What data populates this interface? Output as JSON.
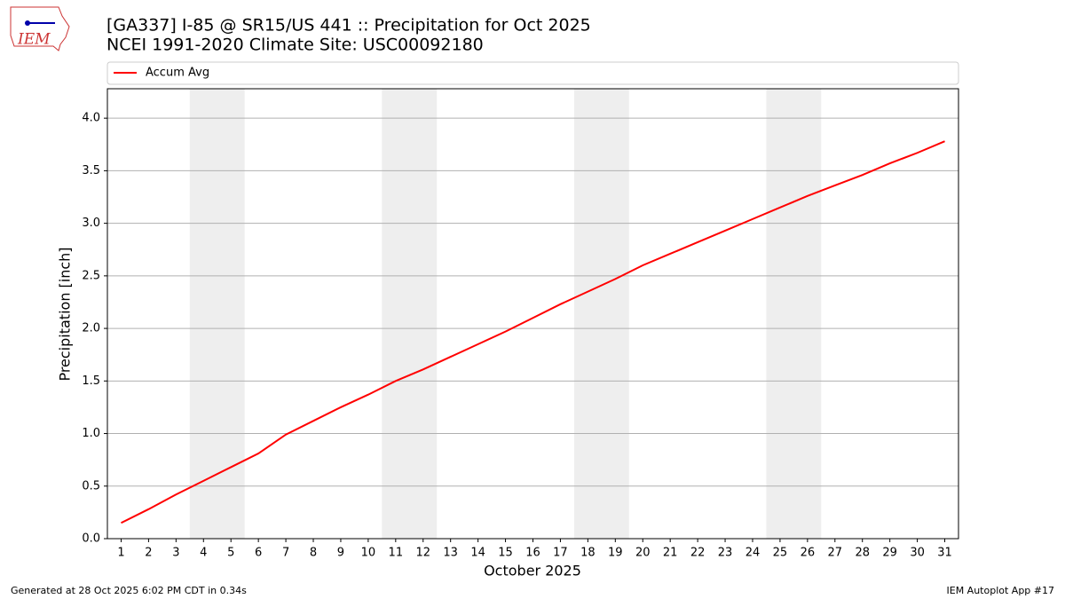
{
  "chart_data": {
    "type": "line",
    "title": "[GA337] I-85 @ SR15/US 441 :: Precipitation for Oct 2025",
    "subtitle": "NCEI 1991-2020 Climate Site: USC00092180",
    "xlabel": "October 2025",
    "ylabel": "Precipitation [inch]",
    "x": [
      1,
      2,
      3,
      4,
      5,
      6,
      7,
      8,
      9,
      10,
      11,
      12,
      13,
      14,
      15,
      16,
      17,
      18,
      19,
      20,
      21,
      22,
      23,
      24,
      25,
      26,
      27,
      28,
      29,
      30,
      31
    ],
    "series": [
      {
        "name": "Accum Avg",
        "color": "#ff0000",
        "values": [
          0.15,
          0.28,
          0.42,
          0.55,
          0.68,
          0.81,
          0.99,
          1.12,
          1.25,
          1.37,
          1.5,
          1.61,
          1.73,
          1.85,
          1.97,
          2.1,
          2.23,
          2.35,
          2.47,
          2.6,
          2.71,
          2.82,
          2.93,
          3.04,
          3.15,
          3.26,
          3.36,
          3.46,
          3.57,
          3.67,
          3.78
        ]
      }
    ],
    "shaded_spans": [
      [
        3.5,
        5.5
      ],
      [
        10.5,
        12.5
      ],
      [
        17.5,
        19.5
      ],
      [
        24.5,
        26.5
      ]
    ],
    "xlim": [
      0.5,
      31.5
    ],
    "xticks": [
      1,
      2,
      3,
      4,
      5,
      6,
      7,
      8,
      9,
      10,
      11,
      12,
      13,
      14,
      15,
      16,
      17,
      18,
      19,
      20,
      21,
      22,
      23,
      24,
      25,
      26,
      27,
      28,
      29,
      30,
      31
    ],
    "ylim": [
      0,
      4.28
    ],
    "yticks": [
      {
        "value": 0,
        "label": "0.0"
      },
      {
        "value": 0.5,
        "label": "0.5"
      },
      {
        "value": 1,
        "label": "1.0"
      },
      {
        "value": 1.5,
        "label": "1.5"
      },
      {
        "value": 2,
        "label": "2.0"
      },
      {
        "value": 2.5,
        "label": "2.5"
      },
      {
        "value": 3,
        "label": "3.0"
      },
      {
        "value": 3.5,
        "label": "3.5"
      },
      {
        "value": 4,
        "label": "4.0"
      }
    ],
    "grid": true,
    "logo_text": "IEM",
    "footer_left": "Generated at 28 Oct 2025 6:02 PM CDT in 0.34s",
    "footer_right": "IEM Autoplot App #17"
  }
}
